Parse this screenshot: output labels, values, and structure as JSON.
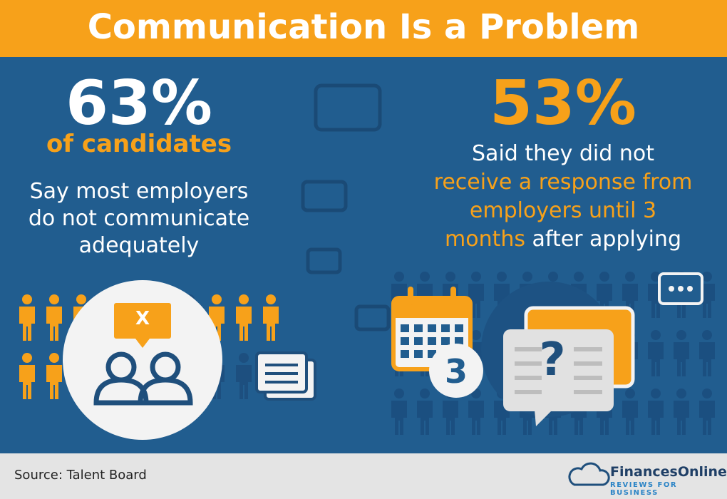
{
  "header": {
    "title": "Communication Is a Problem"
  },
  "left": {
    "stat": "63%",
    "subject": "of candidates",
    "lines": [
      "Say most employers",
      "do not communicate",
      "adequately"
    ],
    "bubble": "X"
  },
  "right": {
    "stat": "53%",
    "line1": "Said they did not",
    "line2": "receive a response from",
    "line3": "employers until 3",
    "line4_highlight": "months",
    "line4_rest": "after applying",
    "calendar_number": "3",
    "question": "?"
  },
  "footer": {
    "source": "Source: Talent Board",
    "brand": "FinancesOnline",
    "tagline": "REVIEWS FOR BUSINESS"
  }
}
